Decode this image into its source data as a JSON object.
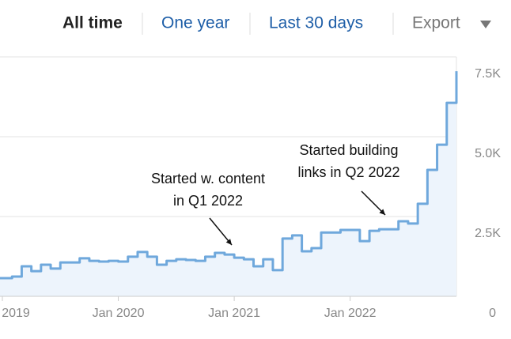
{
  "tabs": [
    "All time",
    "One year",
    "Last 30 days"
  ],
  "export": "Export",
  "chart_data": {
    "type": "line",
    "color": "#6fa8dc",
    "fill": "#edf4fc",
    "x": [
      "2019-01",
      "2019-02",
      "2019-03",
      "2019-04",
      "2019-05",
      "2019-06",
      "2019-07",
      "2019-08",
      "2019-09",
      "2019-10",
      "2019-11",
      "2019-12",
      "2020-01",
      "2020-02",
      "2020-03",
      "2020-04",
      "2020-05",
      "2020-06",
      "2020-07",
      "2020-08",
      "2020-09",
      "2020-10",
      "2020-11",
      "2020-12",
      "2021-01",
      "2021-02",
      "2021-03",
      "2021-04",
      "2021-05",
      "2021-06",
      "2021-07",
      "2021-08",
      "2021-09",
      "2021-10",
      "2021-11",
      "2021-12",
      "2022-01",
      "2022-02",
      "2022-03",
      "2022-04",
      "2022-05",
      "2022-06",
      "2022-07",
      "2022-08",
      "2022-09",
      "2022-10",
      "2022-11",
      "2022-12"
    ],
    "values": [
      570,
      620,
      940,
      790,
      990,
      870,
      1060,
      1060,
      1190,
      1110,
      1090,
      1110,
      1090,
      1240,
      1390,
      1240,
      990,
      1110,
      1160,
      1140,
      1110,
      1240,
      1360,
      1310,
      1210,
      1160,
      940,
      1160,
      820,
      1810,
      1910,
      1410,
      1510,
      2000,
      2000,
      2080,
      2080,
      1730,
      2050,
      2100,
      2100,
      2350,
      2280,
      2900,
      3960,
      4750,
      6060,
      7050
    ],
    "xlim": [
      "2019-01",
      "2022-12"
    ],
    "xticks": [
      {
        "value": "2019-01",
        "label": "2019"
      },
      {
        "value": "2020-01",
        "label": "Jan 2020"
      },
      {
        "value": "2021-01",
        "label": "Jan 2021"
      },
      {
        "value": "2022-01",
        "label": "Jan 2022"
      }
    ],
    "ylim": [
      0,
      7500
    ],
    "yticks": [
      0,
      {
        "value": 2500,
        "label": "2.5K"
      },
      {
        "value": 5000,
        "label": "5.0K"
      },
      {
        "value": 7500,
        "label": "7.5K"
      }
    ],
    "grid": true,
    "annotations": [
      {
        "lines": [
          "Started w. content",
          "in Q1 2022"
        ]
      },
      {
        "lines": [
          "Started building",
          "links in Q2 2022"
        ]
      }
    ]
  }
}
